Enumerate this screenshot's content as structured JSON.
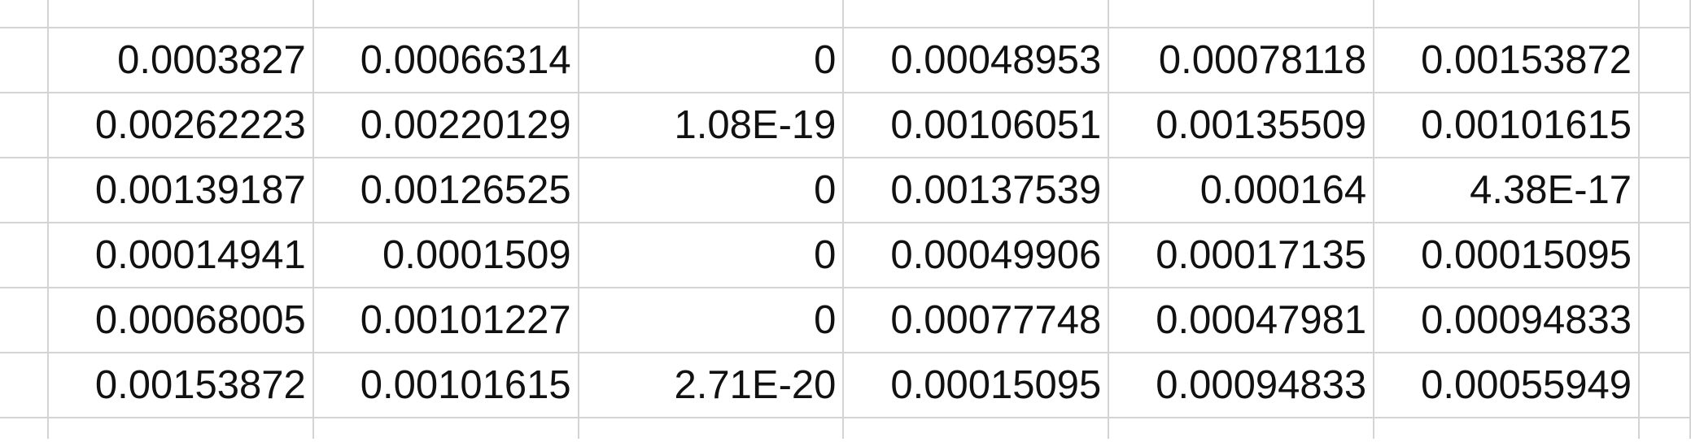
{
  "spreadsheet": {
    "rows": [
      [
        "0.0003827",
        "0.00066314",
        "0",
        "0.00048953",
        "0.00078118",
        "0.00153872"
      ],
      [
        "0.00262223",
        "0.00220129",
        "1.08E-19",
        "0.00106051",
        "0.00135509",
        "0.00101615"
      ],
      [
        "0.00139187",
        "0.00126525",
        "0",
        "0.00137539",
        "0.000164",
        "4.38E-17"
      ],
      [
        "0.00014941",
        "0.0001509",
        "0",
        "0.00049906",
        "0.00017135",
        "0.00015095"
      ],
      [
        "0.00068005",
        "0.00101227",
        "0",
        "0.00077748",
        "0.00047981",
        "0.00094833"
      ],
      [
        "0.00153872",
        "0.00101615",
        "2.71E-20",
        "0.00015095",
        "0.00094833",
        "0.00055949"
      ]
    ]
  }
}
